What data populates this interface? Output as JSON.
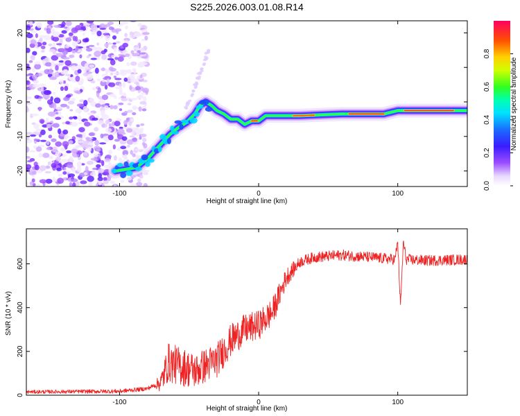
{
  "title": "S225.2026.003.01.08.R14",
  "chart_data": [
    {
      "type": "heatmap",
      "name": "spectrogram",
      "xlabel": "Height of straight line (km)",
      "ylabel": "Frequency (Hz)",
      "xlim": [
        -167,
        150
      ],
      "ylim": [
        -24.5,
        23.5
      ],
      "xticks": [
        -100,
        0,
        100
      ],
      "yticks": [
        -20,
        -10,
        0,
        10,
        20
      ],
      "colorbar": {
        "label": "Normalized spectral amplitude",
        "range": [
          0.0,
          1.0
        ],
        "ticks": [
          0.0,
          0.2,
          0.4,
          0.6,
          0.8
        ]
      },
      "ridge": {
        "x": [
          -103,
          -95,
          -88,
          -80,
          -72,
          -64,
          -58,
          -52,
          -46,
          -42,
          -38,
          -34,
          -30,
          -25,
          -20,
          -15,
          -10,
          -5,
          0,
          5,
          10,
          30,
          60,
          90,
          100,
          120,
          150
        ],
        "freq": [
          -20,
          -19.5,
          -19,
          -16.5,
          -13,
          -9.5,
          -7.5,
          -6,
          -3.5,
          -1,
          0,
          -1,
          -2.5,
          -3.5,
          -5,
          -5,
          -6.5,
          -5.5,
          -5.5,
          -4,
          -4,
          -4,
          -3.5,
          -3.5,
          -2.5,
          -2.5,
          -2.5
        ]
      }
    },
    {
      "type": "line",
      "name": "snr",
      "xlabel": "Height of straight line (km)",
      "ylabel": "SNR (10 * v/v)",
      "xlim": [
        -167,
        150
      ],
      "ylim": [
        0,
        760
      ],
      "xticks": [
        -100,
        0,
        100
      ],
      "yticks": [
        0,
        200,
        400,
        600
      ],
      "color": "#ee2222",
      "envelope": {
        "x": [
          -167,
          -100,
          -80,
          -70,
          -65,
          -55,
          -45,
          -40,
          -30,
          -20,
          -10,
          0,
          10,
          15,
          20,
          30,
          40,
          60,
          80,
          98,
          100,
          102,
          104,
          106,
          120,
          150
        ],
        "y": [
          15,
          18,
          30,
          60,
          150,
          130,
          110,
          130,
          160,
          250,
          300,
          320,
          380,
          460,
          540,
          610,
          630,
          640,
          630,
          620,
          700,
          400,
          700,
          620,
          615,
          620
        ]
      },
      "noise": {
        "x": [
          -167,
          -75,
          -65,
          -55,
          -45,
          -30,
          -10,
          10,
          20,
          30,
          60,
          150
        ],
        "amp": [
          8,
          10,
          90,
          90,
          80,
          80,
          70,
          65,
          45,
          25,
          25,
          25
        ]
      }
    }
  ]
}
